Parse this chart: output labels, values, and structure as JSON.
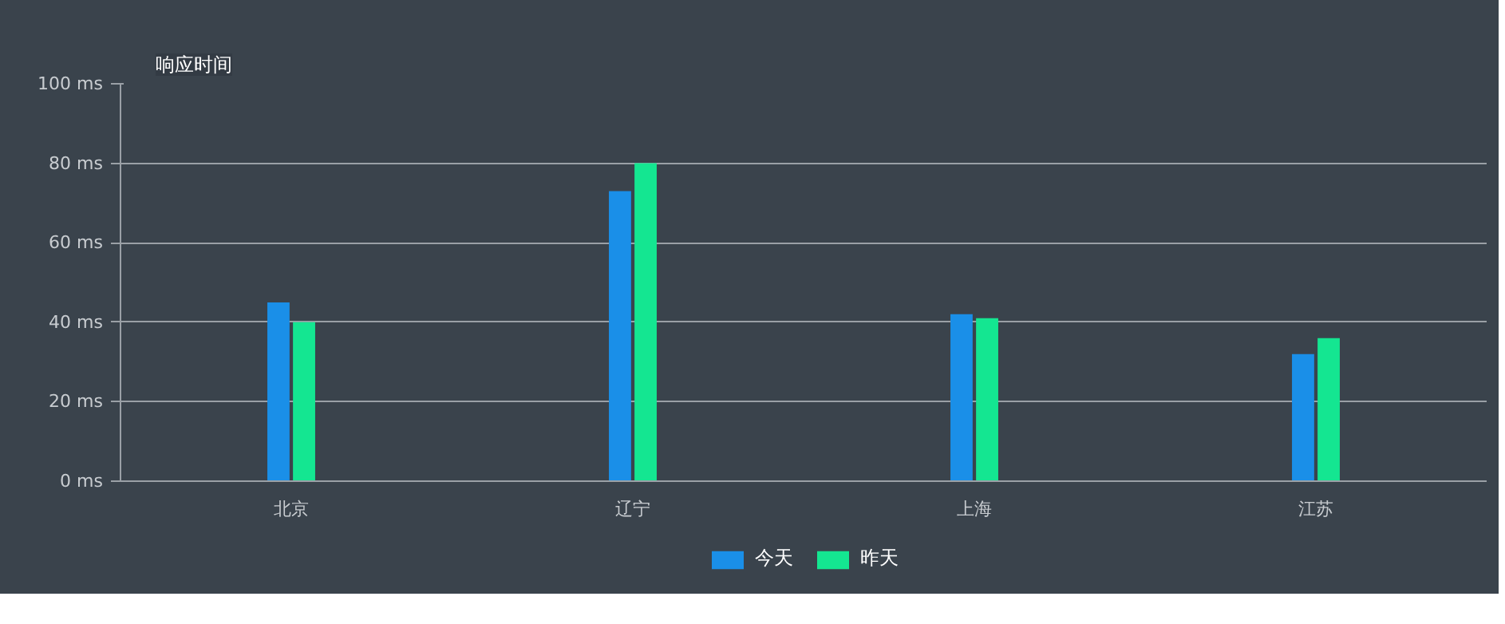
{
  "chart_data": {
    "type": "bar",
    "title": "响应时间",
    "categories": [
      "北京",
      "辽宁",
      "上海",
      "江苏"
    ],
    "series": [
      {
        "name": "今天",
        "color": "#1a8fe8",
        "values": [
          45,
          73,
          42,
          32
        ]
      },
      {
        "name": "昨天",
        "color": "#14e691",
        "values": [
          40,
          80,
          41,
          36
        ]
      }
    ],
    "ylim": [
      0,
      100
    ],
    "yticks": [
      {
        "value": 0,
        "label": "0 ms"
      },
      {
        "value": 20,
        "label": "20 ms"
      },
      {
        "value": 40,
        "label": "40 ms"
      },
      {
        "value": 60,
        "label": "60 ms"
      },
      {
        "value": 80,
        "label": "80 ms"
      },
      {
        "value": 100,
        "label": "100 ms"
      }
    ],
    "grid": "y",
    "legend": "bottom"
  }
}
